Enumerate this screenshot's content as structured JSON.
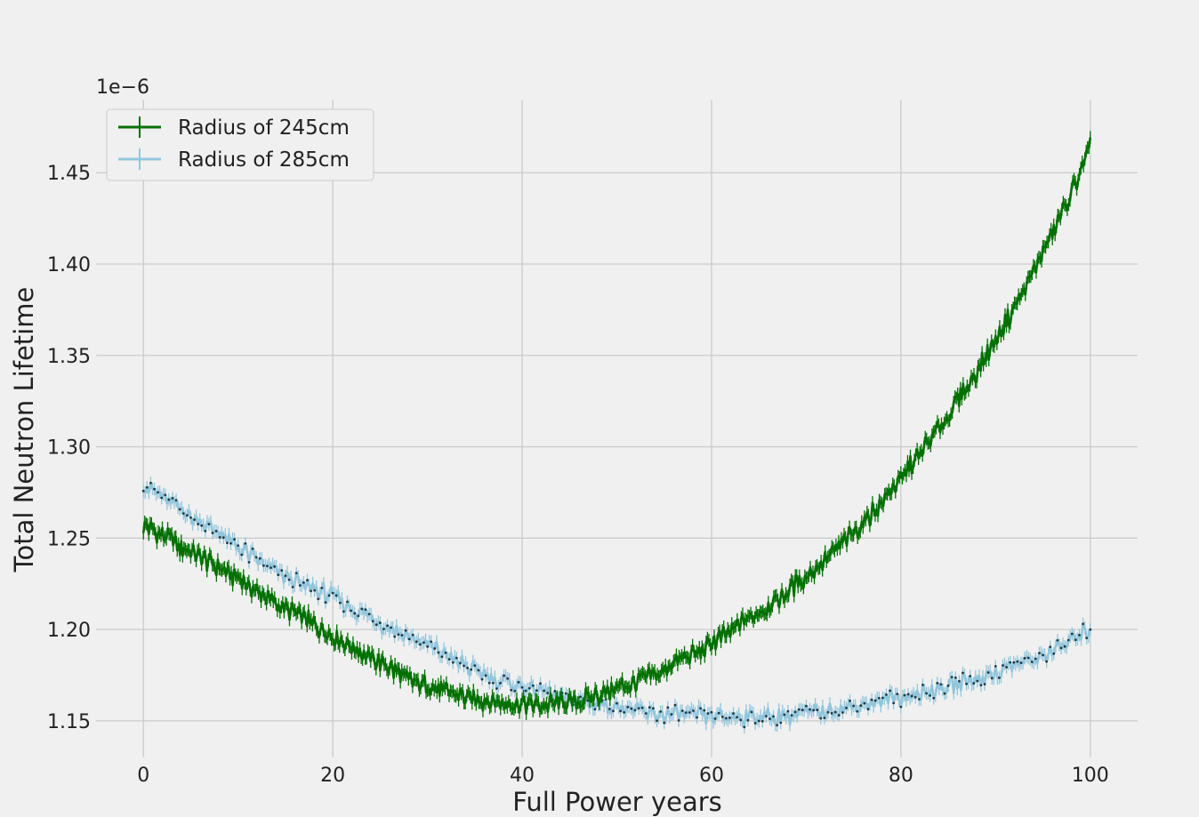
{
  "chart_data": {
    "type": "line",
    "title": "",
    "xlabel": "Full Power years",
    "ylabel": "Total Neutron Lifetime",
    "y_offset_text": "1e−6",
    "xlim": [
      -5,
      105
    ],
    "ylim": [
      1.13,
      1.49
    ],
    "x_ticks": [
      0,
      20,
      40,
      60,
      80,
      100
    ],
    "x_tick_labels": [
      "0",
      "20",
      "40",
      "60",
      "80",
      "100"
    ],
    "y_ticks": [
      1.15,
      1.2,
      1.25,
      1.3,
      1.35,
      1.4,
      1.45
    ],
    "y_tick_labels": [
      "1.15",
      "1.20",
      "1.25",
      "1.30",
      "1.35",
      "1.40",
      "1.45"
    ],
    "grid": true,
    "legend_position": "top-left",
    "series": [
      {
        "name": "Radius of 245cm",
        "color": "#007000",
        "error_bars": true,
        "x": [
          0,
          2,
          4,
          6,
          8,
          10,
          12,
          14,
          16,
          18,
          20,
          22,
          24,
          26,
          28,
          30,
          32,
          34,
          36,
          38,
          40,
          42,
          44,
          46,
          48,
          50,
          52,
          54,
          56,
          58,
          60,
          62,
          64,
          66,
          68,
          70,
          72,
          74,
          76,
          78,
          80,
          82,
          84,
          86,
          88,
          90,
          92,
          94,
          96,
          98,
          100
        ],
        "values": [
          1.257,
          1.252,
          1.245,
          1.239,
          1.234,
          1.228,
          1.221,
          1.214,
          1.209,
          1.203,
          1.197,
          1.191,
          1.184,
          1.179,
          1.172,
          1.169,
          1.166,
          1.163,
          1.161,
          1.16,
          1.159,
          1.159,
          1.16,
          1.161,
          1.164,
          1.168,
          1.171,
          1.175,
          1.181,
          1.186,
          1.192,
          1.199,
          1.206,
          1.213,
          1.221,
          1.229,
          1.238,
          1.248,
          1.259,
          1.27,
          1.283,
          1.296,
          1.31,
          1.325,
          1.341,
          1.358,
          1.376,
          1.396,
          1.417,
          1.438,
          1.465
        ]
      },
      {
        "name": "Radius of 285cm",
        "color": "#92c6dc",
        "error_bars": true,
        "x": [
          0,
          2,
          4,
          6,
          8,
          10,
          12,
          14,
          16,
          18,
          20,
          22,
          24,
          26,
          28,
          30,
          32,
          34,
          36,
          38,
          40,
          42,
          44,
          46,
          48,
          50,
          52,
          54,
          56,
          58,
          60,
          62,
          64,
          66,
          68,
          70,
          72,
          74,
          76,
          78,
          80,
          82,
          84,
          86,
          88,
          90,
          92,
          94,
          96,
          98,
          100
        ],
        "values": [
          1.28,
          1.272,
          1.266,
          1.259,
          1.252,
          1.245,
          1.238,
          1.232,
          1.226,
          1.222,
          1.218,
          1.212,
          1.206,
          1.201,
          1.196,
          1.191,
          1.186,
          1.18,
          1.175,
          1.172,
          1.169,
          1.166,
          1.163,
          1.161,
          1.159,
          1.158,
          1.155,
          1.154,
          1.153,
          1.153,
          1.153,
          1.152,
          1.152,
          1.152,
          1.153,
          1.154,
          1.155,
          1.157,
          1.159,
          1.161,
          1.163,
          1.165,
          1.168,
          1.171,
          1.173,
          1.177,
          1.18,
          1.184,
          1.188,
          1.194,
          1.201
        ]
      }
    ]
  }
}
